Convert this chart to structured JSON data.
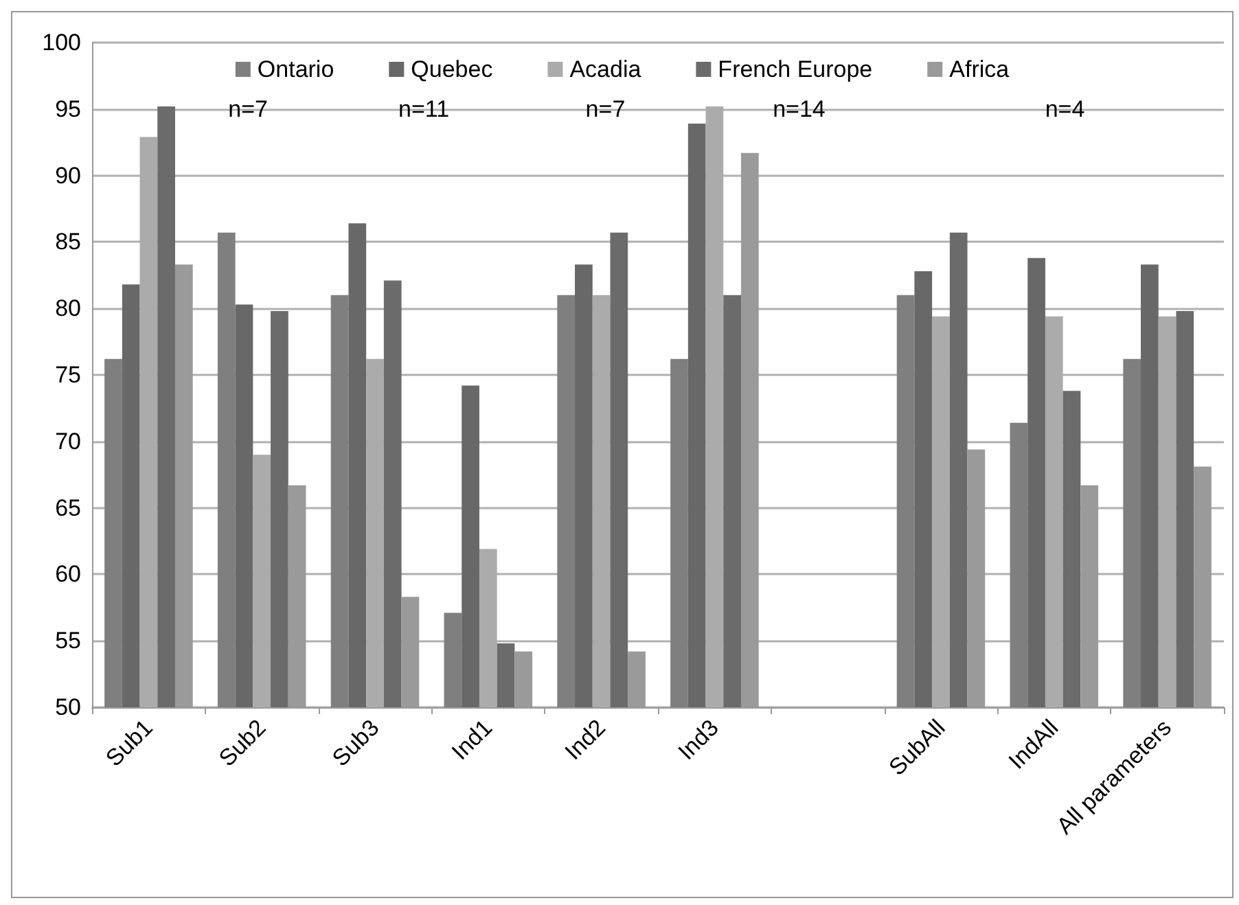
{
  "chart_data": {
    "type": "bar",
    "categories": [
      "Sub1",
      "Sub2",
      "Sub3",
      "Ind1",
      "Ind2",
      "Ind3",
      null,
      "SubAll",
      "IndAll",
      "All parameters"
    ],
    "series": [
      {
        "name": "Ontario",
        "color": "#7f7f7f",
        "values": [
          76.2,
          85.7,
          81.0,
          57.1,
          81.0,
          76.2,
          null,
          81.0,
          71.4,
          76.2
        ]
      },
      {
        "name": "Quebec",
        "color": "#686868",
        "values": [
          81.8,
          80.3,
          86.4,
          74.2,
          83.3,
          93.9,
          null,
          82.8,
          83.8,
          83.3
        ]
      },
      {
        "name": "Acadia",
        "color": "#ababab",
        "values": [
          92.9,
          69.0,
          76.2,
          61.9,
          81.0,
          95.2,
          null,
          79.4,
          79.4,
          79.4
        ]
      },
      {
        "name": "French Europe",
        "color": "#6b6b6b",
        "values": [
          95.2,
          79.8,
          82.1,
          54.8,
          85.7,
          81.0,
          null,
          85.7,
          73.8,
          79.8
        ]
      },
      {
        "name": "Africa",
        "color": "#9a9a9a",
        "values": [
          83.3,
          66.7,
          58.3,
          54.2,
          54.2,
          91.7,
          null,
          69.4,
          66.7,
          68.1
        ]
      }
    ],
    "annotations": [
      "n=7",
      "n=11",
      "n=7",
      "n=14",
      "n=4"
    ],
    "ylim": [
      50,
      100
    ],
    "yticks": [
      50,
      55,
      60,
      65,
      70,
      75,
      80,
      85,
      90,
      95,
      100
    ],
    "grid": "y",
    "legend": "top"
  }
}
